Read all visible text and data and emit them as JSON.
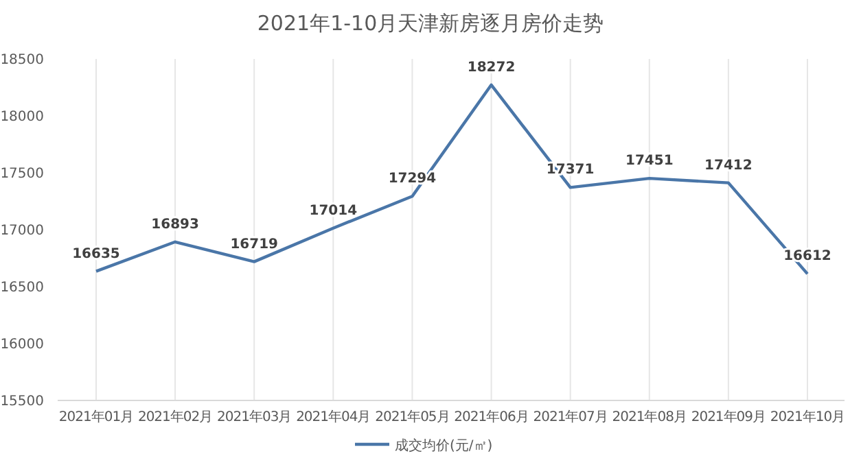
{
  "chart_data": {
    "type": "line",
    "title": "2021年1-10月天津新房逐月房价走势",
    "categories": [
      "2021年01月",
      "2021年02月",
      "2021年03月",
      "2021年04月",
      "2021年05月",
      "2021年06月",
      "2021年07月",
      "2021年08月",
      "2021年09月",
      "2021年10月"
    ],
    "series": [
      {
        "name": "成交均价(元/㎡)",
        "color": "#4a76a8",
        "values": [
          16635,
          16893,
          16719,
          17014,
          17294,
          18272,
          17371,
          17451,
          17412,
          16612
        ]
      }
    ],
    "ylim": [
      15500,
      18500
    ],
    "yticks": [
      15500,
      16000,
      16500,
      17000,
      17500,
      18000,
      18500
    ],
    "grid": "x",
    "legend": "bottom",
    "data_labels": true,
    "marker": "none",
    "line_style": "solid"
  }
}
